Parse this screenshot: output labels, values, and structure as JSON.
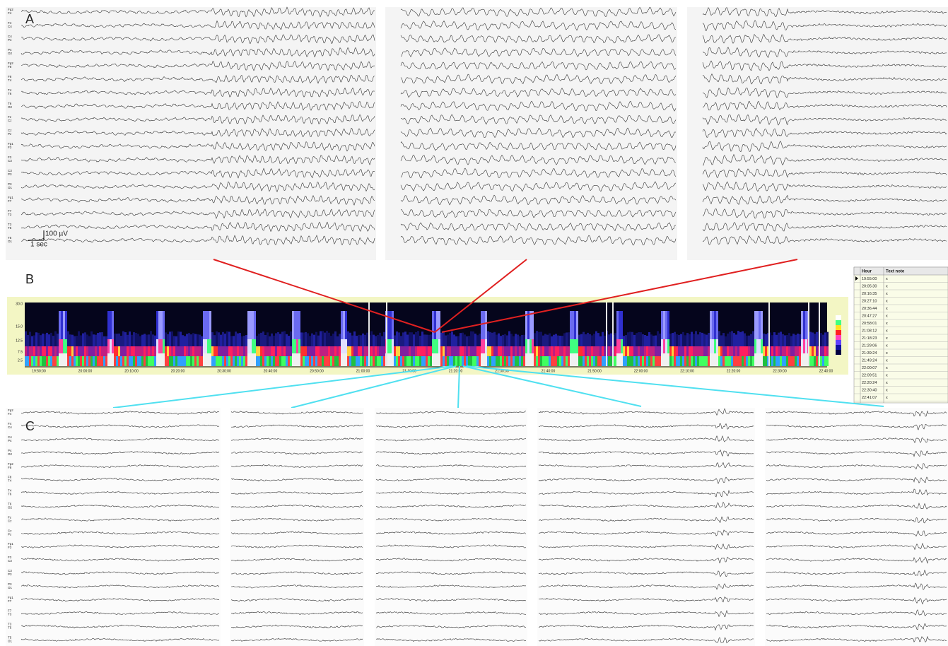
{
  "channels": [
    [
      "Fp2",
      "F4"
    ],
    [
      "F4",
      "C4"
    ],
    [
      "C4",
      "P4"
    ],
    [
      "P4",
      "O2"
    ],
    [
      "Fp2",
      "F8"
    ],
    [
      "F8",
      "T4"
    ],
    [
      "T4",
      "T6"
    ],
    [
      "T6",
      "O2"
    ],
    [
      "Fz",
      "Cz"
    ],
    [
      "Cz",
      "Pz"
    ],
    [
      "Fp1",
      "F3"
    ],
    [
      "F3",
      "C3"
    ],
    [
      "C3",
      "P3"
    ],
    [
      "P3",
      "O1"
    ],
    [
      "Fp1",
      "F7"
    ],
    [
      "F7",
      "T3"
    ],
    [
      "T3",
      "T5"
    ],
    [
      "T5",
      "O1"
    ]
  ],
  "panel_a": {
    "label": "A",
    "scale": {
      "amplitude": "100 µV",
      "time": "1 sec"
    }
  },
  "panel_b": {
    "label": "B",
    "spectrogram": {
      "y_labels": [
        "30.0",
        "15.0",
        "12.5",
        "7.5",
        "2.5"
      ],
      "x_labels": [
        "19:50:00",
        "20:00:00",
        "20:10:00",
        "20:20:00",
        "20:30:00",
        "20:40:00",
        "20:50:00",
        "21:00:00",
        "21:10:00",
        "21:20:00",
        "21:30:00",
        "21:40:00",
        "21:50:00",
        "22:00:00",
        "22:10:00",
        "22:20:00",
        "22:30:00",
        "22:40:00"
      ]
    },
    "table": {
      "header": [
        "Hour",
        "Text note"
      ],
      "rows": [
        [
          "19:55:00",
          "x"
        ],
        [
          "20:05:30",
          "x"
        ],
        [
          "20:16:35",
          "x"
        ],
        [
          "20:27:10",
          "x"
        ],
        [
          "20:36:44",
          "x"
        ],
        [
          "20:47:27",
          "x"
        ],
        [
          "20:58:01",
          "x"
        ],
        [
          "21:08:12",
          "x"
        ],
        [
          "21:18:23",
          "x"
        ],
        [
          "21:29:06",
          "x"
        ],
        [
          "21:39:24",
          "x"
        ],
        [
          "21:49:24",
          "x"
        ],
        [
          "22:00:07",
          "x"
        ],
        [
          "22:09:51",
          "x"
        ],
        [
          "22:20:24",
          "x"
        ],
        [
          "22:30:40",
          "x"
        ],
        [
          "22:41:07",
          "x"
        ]
      ]
    }
  },
  "panel_c": {
    "label": "C"
  }
}
